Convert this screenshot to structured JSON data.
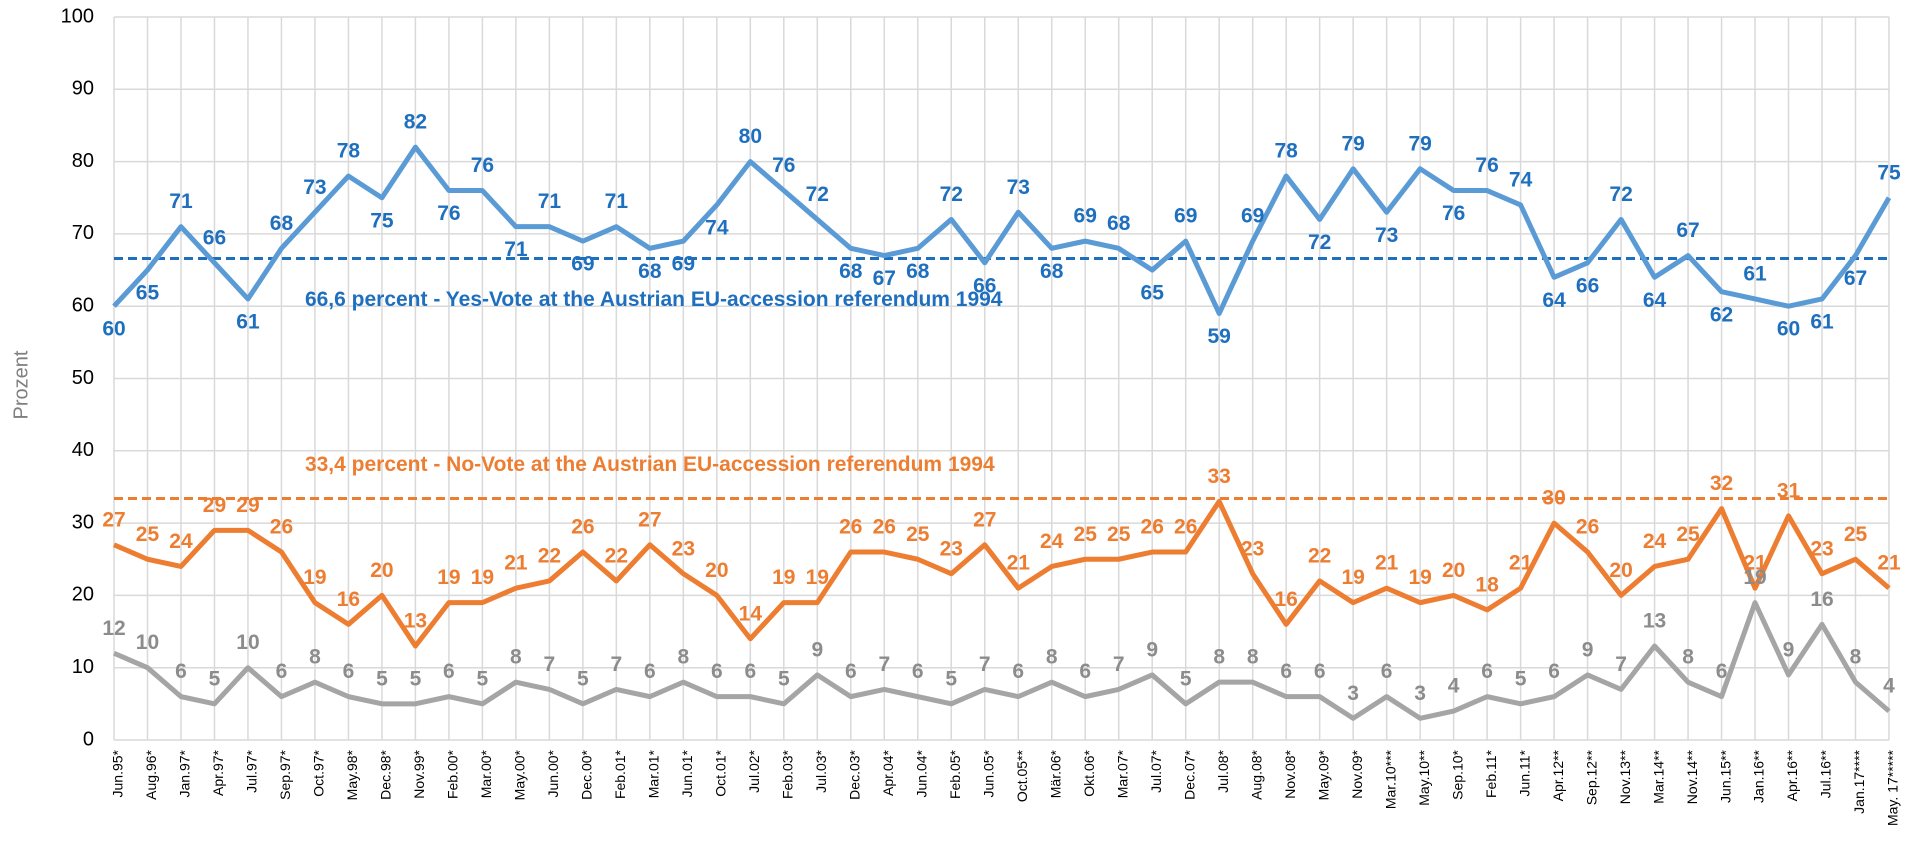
{
  "chart_data": {
    "type": "line",
    "y_label": "Prozent",
    "categories": [
      "Jun.95*",
      "Aug.96*",
      "Jan.97*",
      "Apr.97*",
      "Jul.97*",
      "Sep.97*",
      "Oct.97*",
      "May.98*",
      "Dec.98*",
      "Nov.99*",
      "Feb.00*",
      "Mar.00*",
      "May.00*",
      "Jun.00*",
      "Dec.00*",
      "Feb.01*",
      "Mar.01*",
      "Jun.01*",
      "Oct.01*",
      "Jul.02*",
      "Feb.03*",
      "Jul.03*",
      "Dec.03*",
      "Apr.04*",
      "Jun.04*",
      "Feb.05*",
      "Jun.05*",
      "Oct.05**",
      "Mär.06*",
      "Okt.06*",
      "Mar.07*",
      "Jul.07*",
      "Dec.07*",
      "Jul.08*",
      "Aug.08*",
      "Nov.08*",
      "May.09*",
      "Nov.09*",
      "Mar.10***",
      "May.10**",
      "Sep.10*",
      "Feb.11*",
      "Jun.11*",
      "Apr.12**",
      "Sep.12**",
      "Nov.13**",
      "Mar.14**",
      "Nov.14**",
      "Jun.15**",
      "Jan.16**",
      "Apr.16**",
      "Jul.16**",
      "Jan.17****",
      "May. 17*****"
    ],
    "series": [
      {
        "color": "#5b9bd5",
        "label_color": "#1f6fbf",
        "values": [
          60,
          65,
          71,
          66,
          61,
          68,
          73,
          78,
          75,
          82,
          76,
          76,
          71,
          71,
          69,
          71,
          68,
          69,
          74,
          80,
          76,
          72,
          68,
          67,
          68,
          72,
          66,
          73,
          68,
          69,
          68,
          65,
          69,
          59,
          69,
          78,
          72,
          79,
          73,
          79,
          76,
          76,
          74,
          64,
          66,
          72,
          64,
          67,
          62,
          61,
          60,
          61,
          67,
          75
        ]
      },
      {
        "color": "#ed7d31",
        "label_color": "#ed7d31",
        "values": [
          27,
          25,
          24,
          29,
          29,
          26,
          19,
          16,
          20,
          13,
          19,
          19,
          21,
          22,
          26,
          22,
          27,
          23,
          20,
          14,
          19,
          19,
          26,
          26,
          25,
          23,
          27,
          21,
          24,
          25,
          25,
          26,
          26,
          33,
          23,
          16,
          22,
          19,
          21,
          19,
          20,
          18,
          21,
          30,
          26,
          20,
          24,
          25,
          32,
          21,
          31,
          23,
          25,
          21
        ]
      },
      {
        "color": "#a5a5a5",
        "label_color": "#8c8c8c",
        "values": [
          12,
          10,
          6,
          5,
          10,
          6,
          8,
          6,
          5,
          5,
          6,
          5,
          8,
          7,
          5,
          7,
          6,
          8,
          6,
          6,
          5,
          9,
          6,
          7,
          6,
          5,
          7,
          6,
          8,
          6,
          7,
          9,
          5,
          8,
          8,
          6,
          6,
          3,
          6,
          3,
          4,
          6,
          5,
          6,
          9,
          7,
          13,
          8,
          6,
          19,
          9,
          16,
          8,
          4
        ]
      }
    ],
    "reference_lines": [
      {
        "value": 66.6,
        "color": "#1f6fbf",
        "label": "66,6 percent - Yes-Vote at the Austrian EU-accession referendum 1994"
      },
      {
        "value": 33.4,
        "color": "#ed7d31",
        "label": "33,4 percent - No-Vote at the Austrian EU-accession referendum 1994"
      }
    ],
    "ylim": [
      0,
      100
    ],
    "yticks": [
      0,
      10,
      20,
      30,
      40,
      50,
      60,
      70,
      80,
      90,
      100
    ],
    "grid": true
  }
}
